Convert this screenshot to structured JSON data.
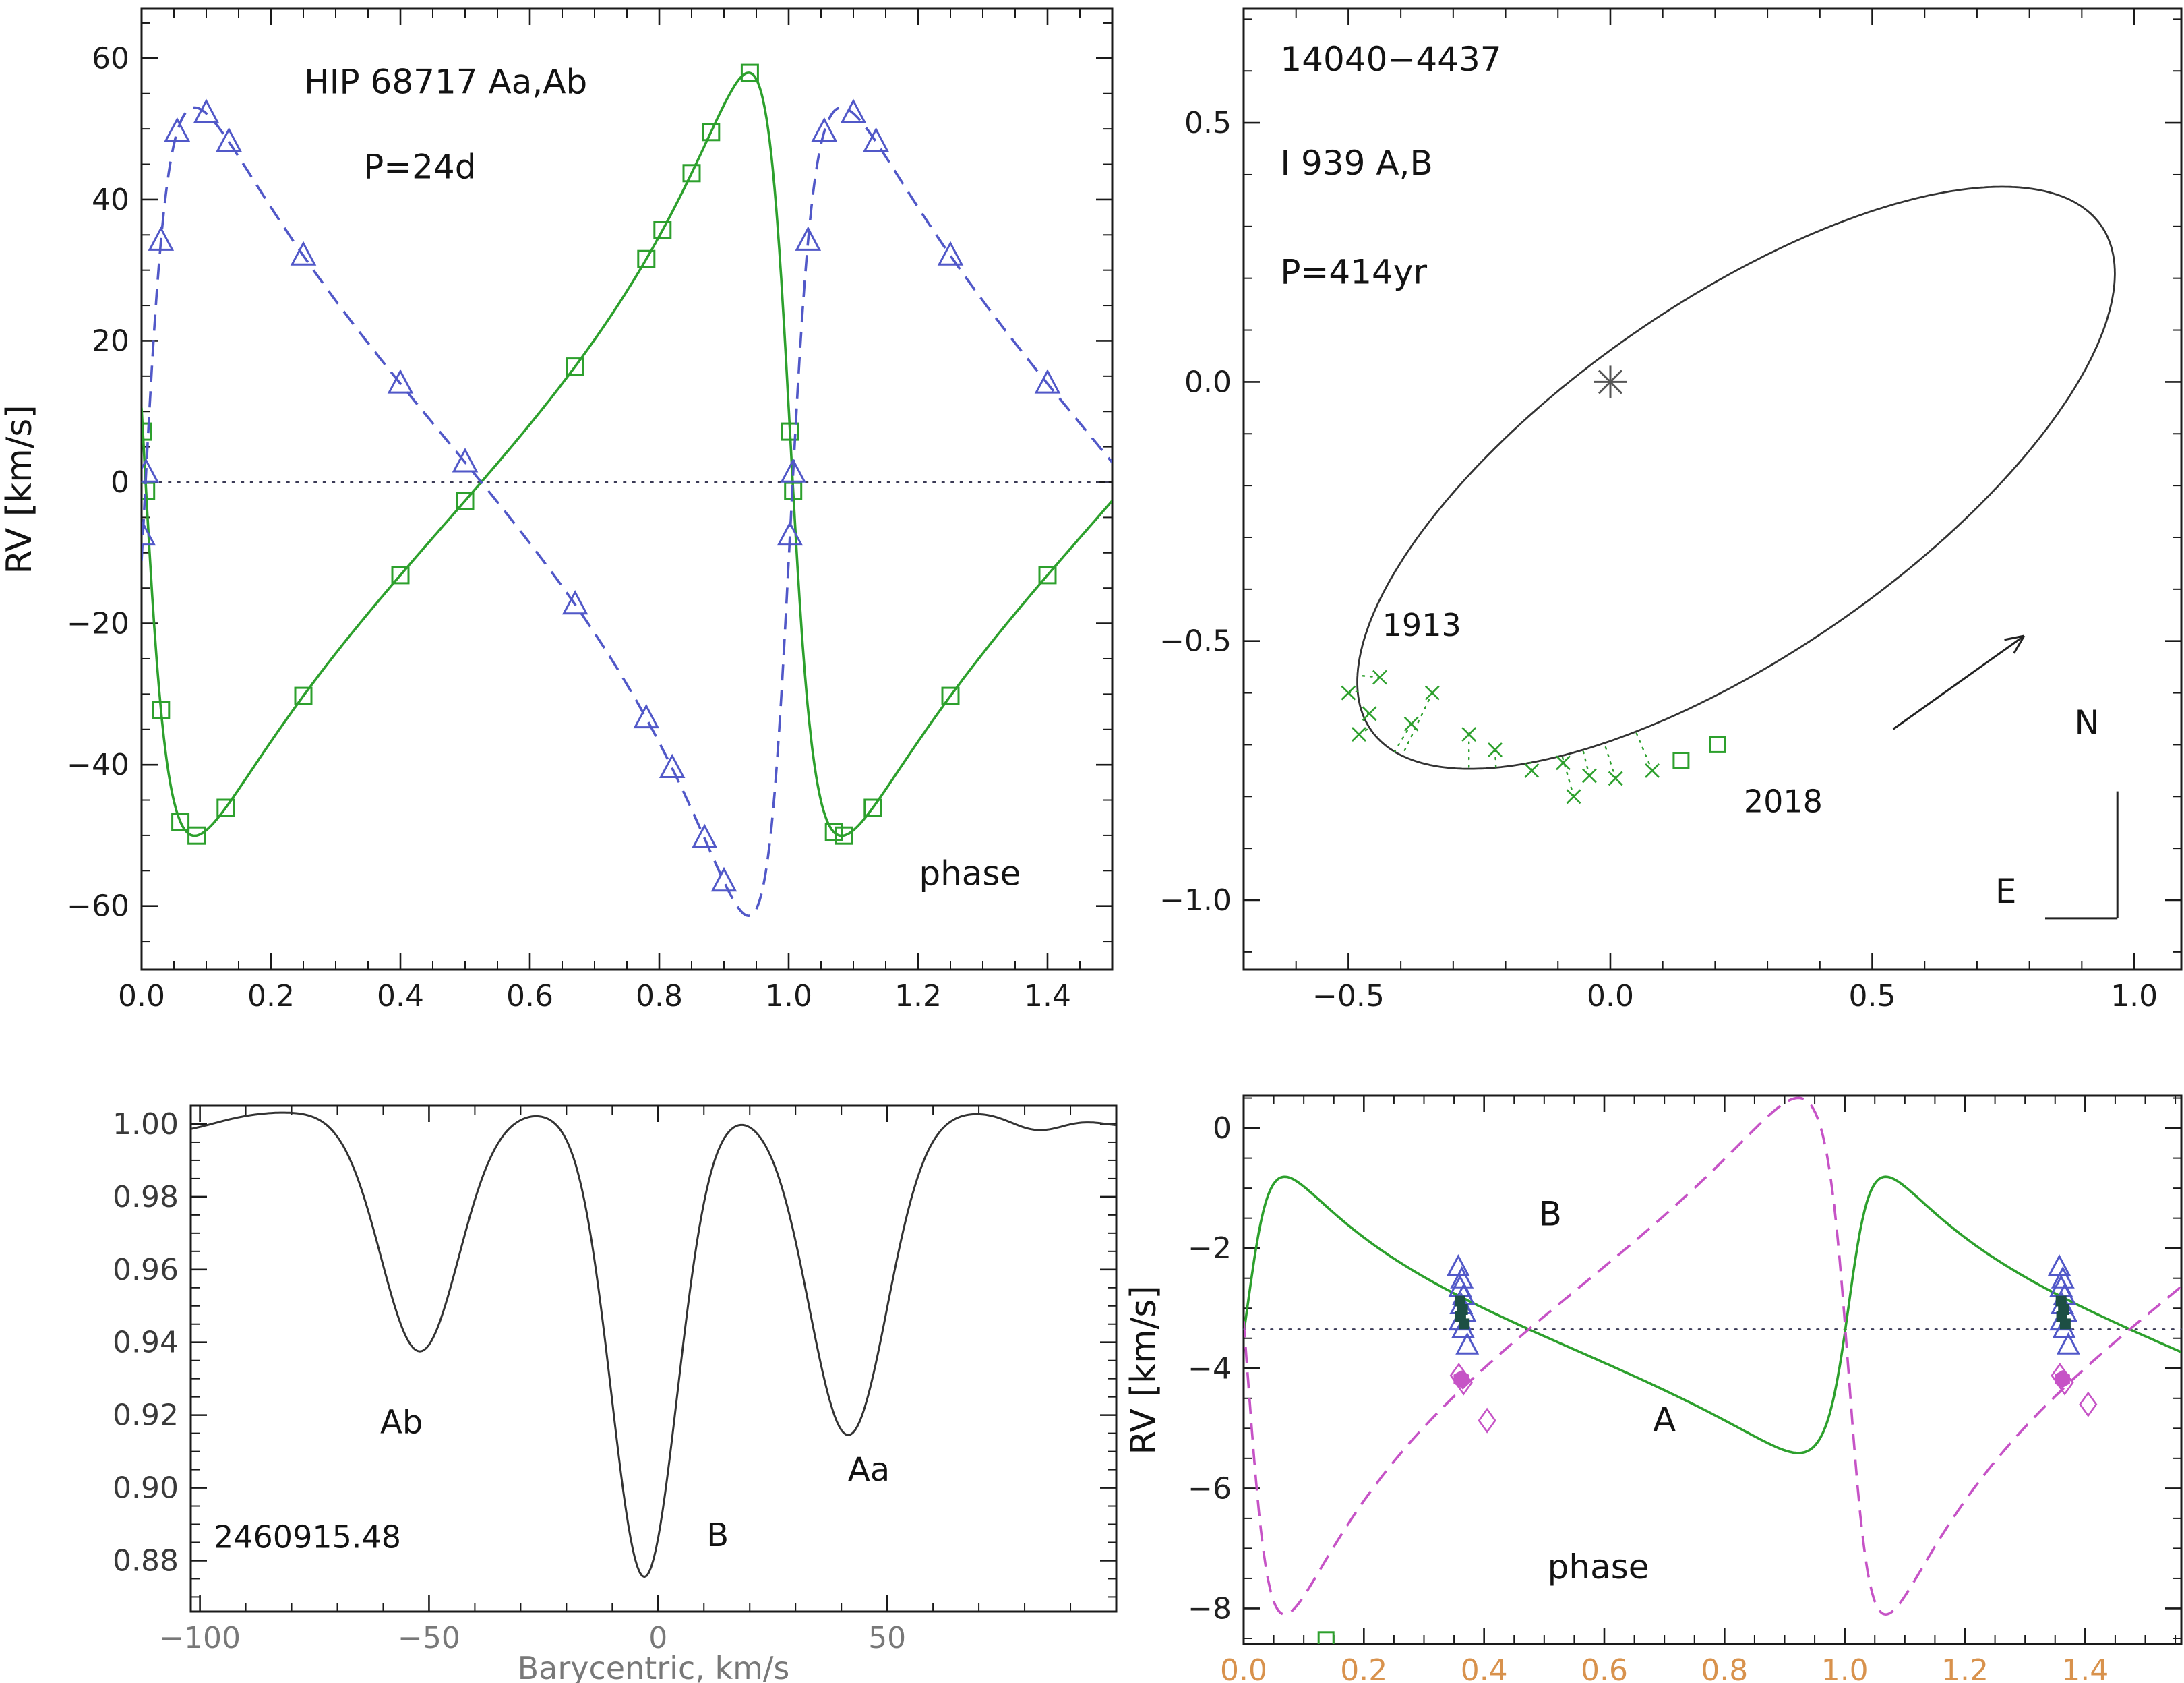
{
  "figure": {
    "background": "#ffffff"
  },
  "chart_data": [
    {
      "id": "rv_inner",
      "type": "line",
      "description": "Radial velocity curves of inner pair vs orbital phase",
      "ylabel": "RV  [km/s]",
      "x_range": [
        0,
        1.5
      ],
      "y_range": [
        -69,
        67
      ],
      "x_ticks": [
        0.0,
        0.2,
        0.4,
        0.6,
        0.8,
        1.0,
        1.2,
        1.4
      ],
      "y_ticks": [
        -60,
        -40,
        -20,
        0,
        20,
        40,
        60
      ],
      "x_minor": 0.05,
      "y_minor": 5,
      "x_decimals": 1,
      "y_decimals": 0,
      "zero_line": {
        "y": 0,
        "color": "#3a3a55"
      },
      "orbit": {
        "e": 0.6,
        "T0_phase": 1.0,
        "gamma": 0,
        "period_label": "P=24d"
      },
      "series": [
        {
          "name": "Aa",
          "color": "#2da02d",
          "line": "solid",
          "marker": "square",
          "K": 54,
          "omega_deg": 83,
          "marker_phases": [
            0.002,
            0.007,
            0.03,
            0.06,
            0.085,
            0.13,
            0.25,
            0.4,
            0.5,
            0.67,
            0.78,
            0.805,
            0.85,
            0.88,
            0.94,
            1.002,
            1.007,
            1.07,
            1.085,
            1.13,
            1.25,
            1.4
          ]
        },
        {
          "name": "Ab",
          "color": "#5158c8",
          "line": "dashed",
          "marker": "triangle",
          "K": 57.2,
          "omega_deg": 263,
          "marker_phases": [
            0.002,
            0.007,
            0.03,
            0.055,
            0.1,
            0.135,
            0.25,
            0.4,
            0.5,
            0.67,
            0.78,
            0.82,
            0.87,
            0.9,
            1.002,
            1.007,
            1.03,
            1.055,
            1.1,
            1.135,
            1.25,
            1.4
          ]
        }
      ],
      "annotations": [
        {
          "text": "HIP 68717 Aa,Ab",
          "x": 0.47,
          "y": 55,
          "size": 50,
          "anchor": "middle"
        },
        {
          "text": "P=24d",
          "x": 0.43,
          "y": 43,
          "size": 50,
          "anchor": "middle"
        },
        {
          "text": "phase",
          "x": 1.28,
          "y": -57,
          "size": 50,
          "anchor": "middle"
        }
      ]
    },
    {
      "id": "orbit_sky",
      "type": "scatter",
      "description": "Visual orbit on the sky, arcsec offsets",
      "x_range": [
        -0.7,
        1.09
      ],
      "y_range": [
        -1.134,
        0.72
      ],
      "x_ticks": [
        -0.5,
        0.0,
        0.5,
        1.0
      ],
      "y_ticks": [
        0.5,
        0.0,
        -0.5,
        -1.0
      ],
      "x_minor": 0.1,
      "y_minor": 0.1,
      "x_decimals": 1,
      "y_decimals": 1,
      "ellipse": {
        "cx": 0.24,
        "cy": -0.185,
        "a": 0.85,
        "b": 0.34,
        "theta_deg": 35,
        "color": "#333333"
      },
      "star": {
        "x": 0,
        "y": 0,
        "color": "#555555"
      },
      "arrow": {
        "x1": 0.54,
        "y1": -0.67,
        "x2": 0.79,
        "y2": -0.49,
        "color": "#222222"
      },
      "compass": {
        "corner_x": 0.968,
        "corner_y": -1.035,
        "north_top_y": -0.79,
        "east_left_x": 0.83,
        "n_label": "N",
        "e_label": "E"
      },
      "crosses_color": "#2da02d",
      "crosses": [
        [
          -0.5,
          -0.6
        ],
        [
          -0.48,
          -0.68
        ],
        [
          -0.46,
          -0.64
        ],
        [
          -0.44,
          -0.57
        ],
        [
          -0.38,
          -0.66
        ],
        [
          -0.34,
          -0.6
        ],
        [
          -0.27,
          -0.68
        ],
        [
          -0.22,
          -0.71
        ],
        [
          -0.15,
          -0.75
        ],
        [
          -0.09,
          -0.735
        ],
        [
          -0.07,
          -0.8
        ],
        [
          -0.04,
          -0.76
        ],
        [
          0.01,
          -0.765
        ],
        [
          0.08,
          -0.75
        ]
      ],
      "squares": [
        [
          0.135,
          -0.73
        ],
        [
          0.205,
          -0.7
        ]
      ],
      "annotations": [
        {
          "text": "14040−4437",
          "x": -0.63,
          "y": 0.6,
          "size": 50,
          "anchor": "start"
        },
        {
          "text": "I 939 A,B",
          "x": -0.63,
          "y": 0.4,
          "size": 50,
          "anchor": "start"
        },
        {
          "text": "P=414yr",
          "x": -0.63,
          "y": 0.19,
          "size": 50,
          "anchor": "start"
        },
        {
          "text": "1913",
          "x": -0.36,
          "y": -0.49,
          "size": 46,
          "anchor": "middle"
        },
        {
          "text": "2018",
          "x": 0.33,
          "y": -0.83,
          "size": 46,
          "anchor": "middle"
        },
        {
          "text": "N",
          "x": 0.91,
          "y": -0.68,
          "size": 50,
          "anchor": "middle"
        },
        {
          "text": "E",
          "x": 0.755,
          "y": -1.005,
          "size": 50,
          "anchor": "middle"
        }
      ]
    },
    {
      "id": "ccf",
      "type": "line",
      "description": "Cross-correlation profile with three dips",
      "xlabel": "Barycentric, km/s",
      "xlabel_color": "#787878",
      "x_range": [
        -102,
        100
      ],
      "y_range": [
        0.866,
        1.005
      ],
      "x_ticks": [
        -100,
        -50,
        0,
        50
      ],
      "y_ticks": [
        0.88,
        0.9,
        0.92,
        0.94,
        0.96,
        0.98,
        1.0
      ],
      "x_minor": 10,
      "y_minor": 0.005,
      "x_decimals": 0,
      "y_decimals": 2,
      "x_tick_label_color": "#787878",
      "y_tick_label_color": "#3a3a3a",
      "curve_color": "#333333",
      "profile": {
        "continuum": 1.0035,
        "dips": [
          {
            "center": -107,
            "depth": 0.0055,
            "width": 10
          },
          {
            "center": -52,
            "depth": 0.066,
            "width": 8.5,
            "label": "Ab"
          },
          {
            "center": -3,
            "depth": 0.128,
            "width": 7.2,
            "label": "B"
          },
          {
            "center": 41.5,
            "depth": 0.089,
            "width": 8.5,
            "label": "Aa"
          },
          {
            "center": 83,
            "depth": 0.005,
            "width": 6
          },
          {
            "center": 103,
            "depth": 0.004,
            "width": 8
          }
        ]
      },
      "annotations": [
        {
          "text": "Ab",
          "x": -56,
          "y": 0.915,
          "size": 48,
          "anchor": "middle"
        },
        {
          "text": "B",
          "x": 13,
          "y": 0.884,
          "size": 48,
          "anchor": "middle"
        },
        {
          "text": "Aa",
          "x": 46,
          "y": 0.902,
          "size": 48,
          "anchor": "middle"
        },
        {
          "text": "2460915.48",
          "x": -97,
          "y": 0.8835,
          "size": 46,
          "anchor": "start"
        }
      ]
    },
    {
      "id": "rv_outer",
      "type": "line",
      "description": "Radial velocity curves of outer pair A,B vs phase with observations",
      "ylabel": "RV  [km/s]",
      "x_range": [
        0,
        1.56
      ],
      "y_range": [
        -8.59,
        0.54
      ],
      "x_ticks": [
        0.0,
        0.2,
        0.4,
        0.6,
        0.8,
        1.0,
        1.2,
        1.4
      ],
      "y_ticks": [
        0,
        -2,
        -4,
        -6,
        -8
      ],
      "x_minor": 0.05,
      "y_minor": 0.5,
      "x_decimals": 1,
      "y_decimals": 0,
      "x_tick_label_color": "#d8924d",
      "y_tick_label_color": "#222222",
      "zero_line": {
        "y": -3.35,
        "color": "#3a3a55"
      },
      "orbit": {
        "e": 0.6,
        "T0_phase": 1.01,
        "gamma": -3.35
      },
      "series": [
        {
          "name": "A",
          "color": "#2da02d",
          "line": "solid",
          "K": 2.3,
          "omega_deg": 280,
          "marker_phases": []
        },
        {
          "name": "B",
          "color": "#c653c6",
          "line": "dashed",
          "K": 4.3,
          "omega_deg": 100,
          "marker_phases": []
        }
      ],
      "observations": {
        "triangles": {
          "color": "#5158c8",
          "points": [
            [
              0.357,
              -2.32
            ],
            [
              0.363,
              -2.52
            ],
            [
              0.36,
              -2.66
            ],
            [
              0.366,
              -2.8
            ],
            [
              0.362,
              -2.95
            ],
            [
              0.368,
              -3.08
            ],
            [
              0.36,
              -3.22
            ],
            [
              0.365,
              -3.35
            ],
            [
              0.372,
              -3.62
            ],
            [
              1.357,
              -2.32
            ],
            [
              1.363,
              -2.52
            ],
            [
              1.36,
              -2.66
            ],
            [
              1.366,
              -2.8
            ],
            [
              1.362,
              -2.95
            ],
            [
              1.368,
              -3.08
            ],
            [
              1.36,
              -3.22
            ],
            [
              1.365,
              -3.35
            ],
            [
              1.372,
              -3.62
            ]
          ]
        },
        "filled_squares": {
          "color": "#1d4f44",
          "points": [
            [
              0.36,
              -2.88
            ],
            [
              0.364,
              -3.02
            ],
            [
              0.361,
              -3.14
            ],
            [
              0.367,
              -3.26
            ],
            [
              1.36,
              -2.88
            ],
            [
              1.364,
              -3.02
            ],
            [
              1.361,
              -3.14
            ],
            [
              1.367,
              -3.26
            ]
          ]
        },
        "diamonds": {
          "color": "#c653c6",
          "points": [
            [
              0.358,
              -4.12
            ],
            [
              0.366,
              -4.24
            ],
            [
              0.405,
              -4.87
            ],
            [
              1.358,
              -4.12
            ],
            [
              1.366,
              -4.24
            ],
            [
              1.405,
              -4.6
            ]
          ]
        },
        "hexagons": {
          "color": "#c653c6",
          "points": [
            [
              0.362,
              -4.18
            ],
            [
              1.362,
              -4.18
            ]
          ]
        },
        "open_squares": {
          "color": "#2da02d",
          "points": [
            [
              0.137,
              -8.52
            ]
          ]
        }
      },
      "annotations": [
        {
          "text": "B",
          "x": 0.51,
          "y": -1.62,
          "size": 50,
          "anchor": "middle"
        },
        {
          "text": "A",
          "x": 0.7,
          "y": -5.05,
          "size": 50,
          "anchor": "middle"
        },
        {
          "text": "phase",
          "x": 0.59,
          "y": -7.5,
          "size": 50,
          "anchor": "middle"
        }
      ]
    }
  ]
}
